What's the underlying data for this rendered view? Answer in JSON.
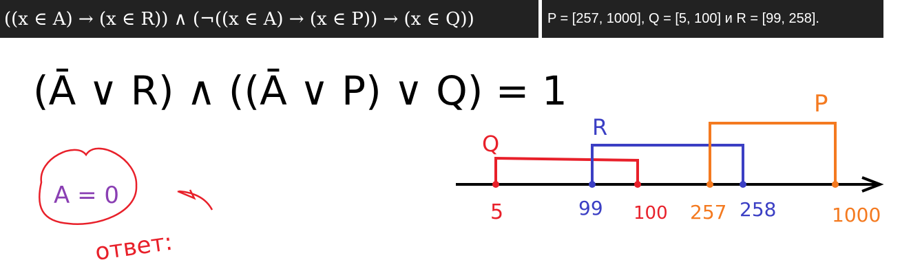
{
  "formula": {
    "text": "((x ∈ A) → (x ∈ R)) ∧ (¬((x ∈ A) → (x ∈ P)) → (x ∈ Q))"
  },
  "ranges": {
    "text": "P = [257, 1000], Q = [5, 100] и R = [99, 258]."
  },
  "handwritten": {
    "equation": "(Ā ∨ R) ∧ ((Ā ∨ P) ∨ Q) = 1",
    "answer_circle": "A = 0",
    "answer_label": "ответ:"
  },
  "numberline": {
    "ticks": [
      {
        "value": "5",
        "color": "#e8202a"
      },
      {
        "value": "99",
        "color": "#3b3fc4"
      },
      {
        "value": "100",
        "color": "#e8202a"
      },
      {
        "value": "257",
        "color": "#f47a20"
      },
      {
        "value": "258",
        "color": "#3b3fc4"
      },
      {
        "value": "1000",
        "color": "#f47a20"
      }
    ],
    "intervals": [
      {
        "name": "Q",
        "from": 5,
        "to": 100,
        "color": "#e8202a"
      },
      {
        "name": "R",
        "from": 99,
        "to": 258,
        "color": "#3b3fc4"
      },
      {
        "name": "P",
        "from": 257,
        "to": 1000,
        "color": "#f47a20"
      }
    ]
  },
  "colors": {
    "ink": "#000000",
    "red": "#e8202a",
    "blue": "#3b3fc4",
    "orange": "#f47a20",
    "purple": "#8a3fb3",
    "strip_bg": "#222222"
  }
}
